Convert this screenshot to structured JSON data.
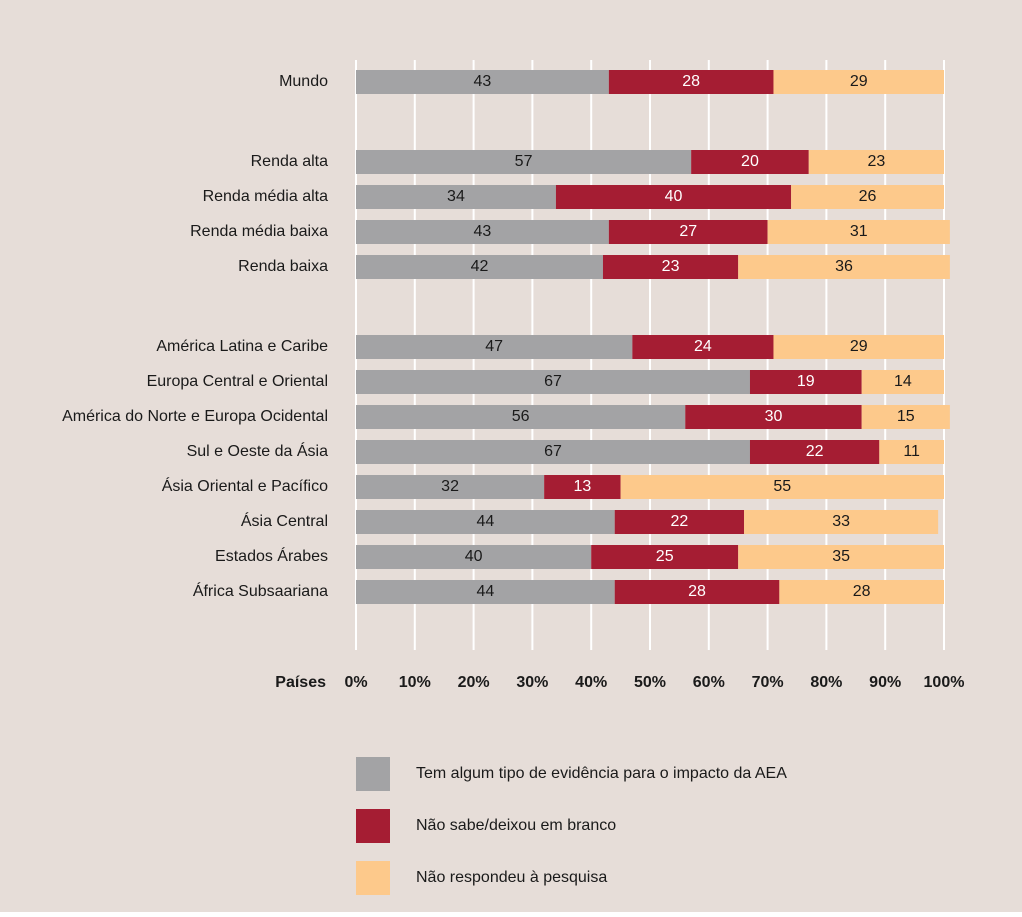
{
  "chart_data": {
    "type": "stacked_barh",
    "categories": [
      "Mundo",
      null,
      "Renda alta",
      "Renda média alta",
      "Renda média baixa",
      "Renda baixa",
      null,
      "América Latina e Caribe",
      "Europa Central e Oriental",
      "América do Norte e Europa Ocidental",
      "Sul e Oeste da Ásia",
      "Ásia Oriental e Pacífico",
      "Ásia Central",
      "Estados Árabes",
      "África Subsaariana"
    ],
    "series": [
      {
        "name": "Tem algum tipo de evidência para o impacto da AEA",
        "color": "#a3a3a5",
        "label_color": "#1a1a1a",
        "values": [
          43,
          null,
          57,
          34,
          43,
          42,
          null,
          47,
          67,
          56,
          67,
          32,
          44,
          40,
          44
        ]
      },
      {
        "name": "Não sabe/deixou em branco",
        "color": "#a51d33",
        "label_color": "#ffffff",
        "values": [
          28,
          null,
          20,
          40,
          27,
          23,
          null,
          24,
          19,
          30,
          22,
          13,
          22,
          25,
          28
        ]
      },
      {
        "name": "Não respondeu à pesquisa",
        "color": "#fdc98b",
        "label_color": "#1a1a1a",
        "values": [
          29,
          null,
          23,
          26,
          31,
          36,
          null,
          29,
          14,
          15,
          11,
          55,
          33,
          35,
          28
        ]
      }
    ],
    "xlabel": "Países",
    "xlim": [
      0,
      100
    ],
    "xticks": [
      {
        "value": 0,
        "label": "0%"
      },
      {
        "value": 10,
        "label": "10%"
      },
      {
        "value": 20,
        "label": "20%"
      },
      {
        "value": 30,
        "label": "30%"
      },
      {
        "value": 40,
        "label": "40%"
      },
      {
        "value": 50,
        "label": "50%"
      },
      {
        "value": 60,
        "label": "60%"
      },
      {
        "value": 70,
        "label": "70%"
      },
      {
        "value": 80,
        "label": "80%"
      },
      {
        "value": 90,
        "label": "90%"
      },
      {
        "value": 100,
        "label": "100%"
      }
    ],
    "grid": true,
    "background": "#e6ddd8",
    "legend": "bottom"
  }
}
